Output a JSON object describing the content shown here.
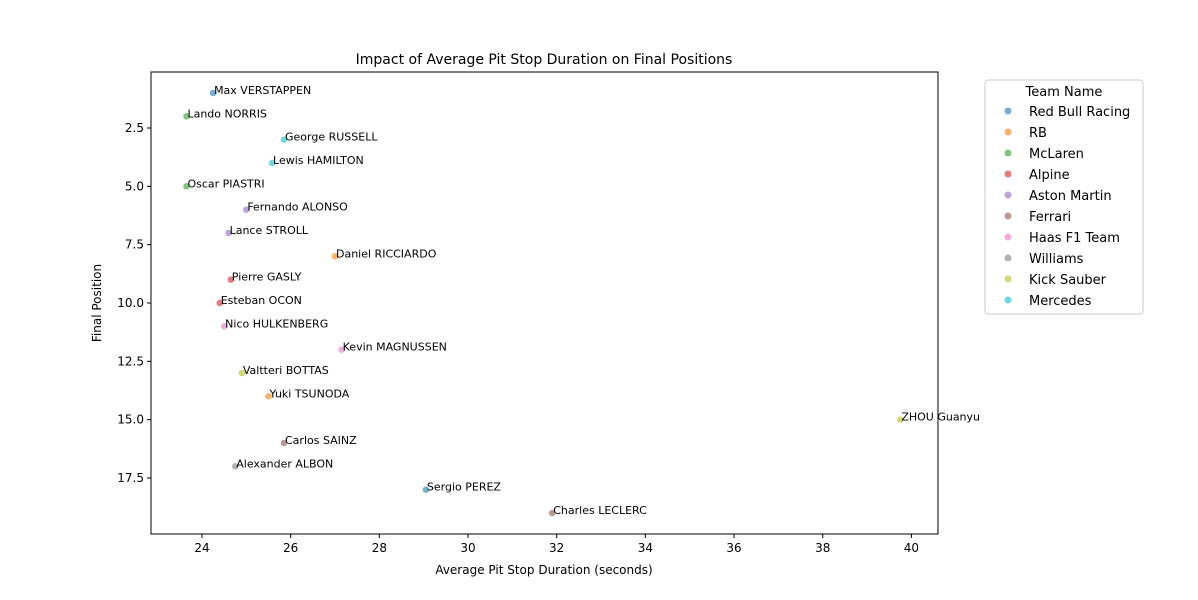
{
  "chart_data": {
    "type": "scatter",
    "title": "Impact of Average Pit Stop Duration on Final Positions",
    "xlabel": "Average Pit Stop Duration (seconds)",
    "ylabel": "Final Position",
    "xlim": [
      22.85,
      40.6
    ],
    "ylim": [
      19.9,
      0.1
    ],
    "y_inverted": true,
    "grid": false,
    "legend_placement": "outside-right",
    "xticks": [
      24,
      26,
      28,
      30,
      32,
      34,
      36,
      38,
      40
    ],
    "xtick_labels": [
      "24",
      "26",
      "28",
      "30",
      "32",
      "34",
      "36",
      "38",
      "40"
    ],
    "yticks": [
      2.5,
      5.0,
      7.5,
      10.0,
      12.5,
      15.0,
      17.5
    ],
    "ytick_labels": [
      "2.5",
      "5.0",
      "7.5",
      "10.0",
      "12.5",
      "15.0",
      "17.5"
    ],
    "legend_title": "Team Name",
    "series": [
      {
        "name": "Red Bull Racing",
        "color": "#1f77b4"
      },
      {
        "name": "RB",
        "color": "#ff7f0e"
      },
      {
        "name": "McLaren",
        "color": "#2ca02c"
      },
      {
        "name": "Alpine",
        "color": "#d62728"
      },
      {
        "name": "Aston Martin",
        "color": "#9467bd"
      },
      {
        "name": "Ferrari",
        "color": "#8c564b"
      },
      {
        "name": "Haas F1 Team",
        "color": "#e377c2"
      },
      {
        "name": "Williams",
        "color": "#7f7f7f"
      },
      {
        "name": "Kick Sauber",
        "color": "#bcbd22"
      },
      {
        "name": "Mercedes",
        "color": "#17becf"
      }
    ],
    "points": [
      {
        "label": "Max VERSTAPPEN",
        "team": "Red Bull Racing",
        "x": 24.25,
        "y": 1
      },
      {
        "label": "Lando NORRIS",
        "team": "McLaren",
        "x": 23.65,
        "y": 2
      },
      {
        "label": "George RUSSELL",
        "team": "Mercedes",
        "x": 25.85,
        "y": 3
      },
      {
        "label": "Lewis HAMILTON",
        "team": "Mercedes",
        "x": 25.58,
        "y": 4
      },
      {
        "label": "Oscar PIASTRI",
        "team": "McLaren",
        "x": 23.65,
        "y": 5
      },
      {
        "label": "Fernando ALONSO",
        "team": "Aston Martin",
        "x": 25.0,
        "y": 6
      },
      {
        "label": "Lance STROLL",
        "team": "Aston Martin",
        "x": 24.6,
        "y": 7
      },
      {
        "label": "Daniel RICCIARDO",
        "team": "RB",
        "x": 27.0,
        "y": 8
      },
      {
        "label": "Pierre GASLY",
        "team": "Alpine",
        "x": 24.65,
        "y": 9
      },
      {
        "label": "Esteban OCON",
        "team": "Alpine",
        "x": 24.4,
        "y": 10
      },
      {
        "label": "Nico HULKENBERG",
        "team": "Haas F1 Team",
        "x": 24.5,
        "y": 11
      },
      {
        "label": "Kevin MAGNUSSEN",
        "team": "Haas F1 Team",
        "x": 27.15,
        "y": 12
      },
      {
        "label": "Valtteri BOTTAS",
        "team": "Kick Sauber",
        "x": 24.9,
        "y": 13
      },
      {
        "label": "Yuki TSUNODA",
        "team": "RB",
        "x": 25.5,
        "y": 14
      },
      {
        "label": "ZHOU Guanyu",
        "team": "Kick Sauber",
        "x": 39.75,
        "y": 15
      },
      {
        "label": "Carlos SAINZ",
        "team": "Ferrari",
        "x": 25.85,
        "y": 16
      },
      {
        "label": "Alexander ALBON",
        "team": "Williams",
        "x": 24.75,
        "y": 17
      },
      {
        "label": "Sergio PEREZ",
        "team": "Red Bull Racing",
        "x": 29.05,
        "y": 18
      },
      {
        "label": "Charles LECLERC",
        "team": "Ferrari",
        "x": 31.9,
        "y": 19
      }
    ]
  }
}
